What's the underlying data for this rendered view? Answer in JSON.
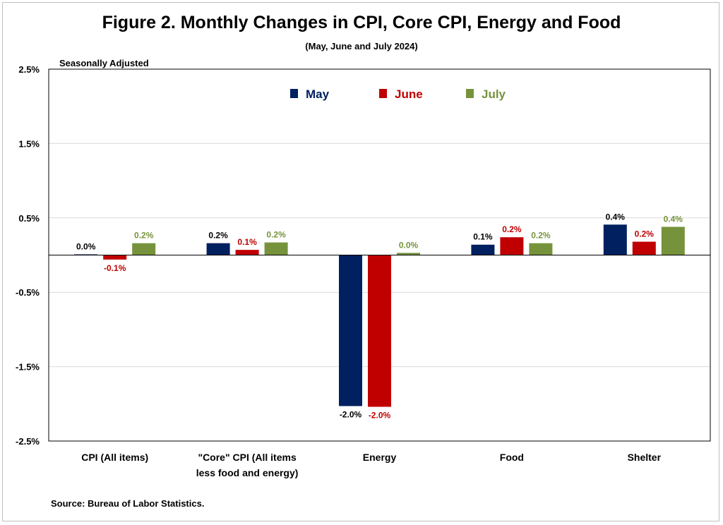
{
  "title": "Figure 2. Monthly Changes in CPI, Core CPI, Energy and Food",
  "subtitle": "(May, June and July 2024)",
  "note": "Seasonally Adjusted",
  "source": "Source: Bureau of Labor Statistics.",
  "chart_data": {
    "type": "bar",
    "categories": [
      [
        "CPI (All items)"
      ],
      [
        "\"Core\" CPI (All items",
        "less food and energy)"
      ],
      [
        "Energy"
      ],
      [
        "Food"
      ],
      [
        "Shelter"
      ]
    ],
    "series": [
      {
        "name": "May",
        "color": "#002060",
        "values": [
          0.01,
          0.16,
          -2.03,
          0.14,
          0.41
        ],
        "labels": [
          "0.0%",
          "0.2%",
          "-2.0%",
          "0.1%",
          "0.4%"
        ]
      },
      {
        "name": "June",
        "color": "#c00000",
        "values": [
          -0.06,
          0.07,
          -2.04,
          0.24,
          0.18
        ],
        "labels": [
          "-0.1%",
          "0.1%",
          "-2.0%",
          "0.2%",
          "0.2%"
        ]
      },
      {
        "name": "July",
        "color": "#76933c",
        "values": [
          0.16,
          0.17,
          0.03,
          0.16,
          0.38
        ],
        "labels": [
          "0.2%",
          "0.2%",
          "0.0%",
          "0.2%",
          "0.4%"
        ]
      }
    ],
    "yticks": [
      2.5,
      1.5,
      0.5,
      -0.5,
      -1.5,
      -2.5
    ],
    "ytick_labels": [
      "2.5%",
      "1.5%",
      "0.5%",
      "-0.5%",
      "-1.5%",
      "-2.5%"
    ],
    "ylim": [
      -2.5,
      2.5
    ],
    "grid": true,
    "legend_position": "top-center"
  }
}
